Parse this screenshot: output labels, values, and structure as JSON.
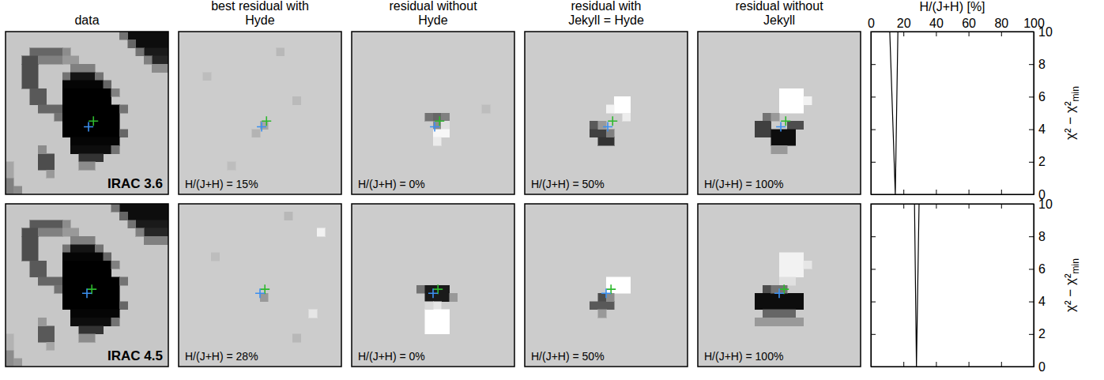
{
  "chart_data": [
    {
      "type": "image",
      "title": "data",
      "label": "IRAC 3.6",
      "size": [
        20,
        20
      ],
      "value_range": [
        0,
        1
      ],
      "background": 0.78,
      "patches": [
        [
          0,
          15,
          1,
          5,
          0.05
        ],
        [
          1,
          16,
          1,
          4,
          0.05
        ],
        [
          2,
          17,
          1,
          3,
          0.1
        ],
        [
          3,
          18,
          1,
          2,
          0.15
        ],
        [
          0,
          14,
          1,
          1,
          0.45
        ],
        [
          1,
          15,
          1,
          1,
          0.4
        ],
        [
          2,
          16,
          1,
          1,
          0.45
        ],
        [
          3,
          17,
          1,
          1,
          0.5
        ],
        [
          4,
          18,
          1,
          2,
          0.55
        ],
        [
          2,
          3,
          1,
          4,
          0.4
        ],
        [
          2,
          7,
          1,
          1,
          0.55
        ],
        [
          3,
          2,
          1,
          2,
          0.3
        ],
        [
          3,
          4,
          1,
          3,
          0.5
        ],
        [
          4,
          2,
          3,
          2,
          0.3
        ],
        [
          7,
          3,
          2,
          2,
          0.35
        ],
        [
          9,
          4,
          1,
          3,
          0.4
        ],
        [
          10,
          6,
          1,
          1,
          0.45
        ],
        [
          3,
          7,
          1,
          2,
          0.6
        ],
        [
          4,
          8,
          1,
          3,
          0.5
        ],
        [
          5,
          7,
          1,
          1,
          0.45
        ],
        [
          5,
          8,
          1,
          3,
          0.08
        ],
        [
          5,
          11,
          1,
          1,
          0.45
        ],
        [
          6,
          7,
          1,
          5,
          0.02
        ],
        [
          6,
          12,
          1,
          1,
          0.4
        ],
        [
          7,
          7,
          2,
          6,
          0
        ],
        [
          7,
          13,
          1,
          1,
          0.5
        ],
        [
          9,
          7,
          4,
          7,
          0
        ],
        [
          9,
          14,
          1,
          1,
          0.45
        ],
        [
          12,
          14,
          1,
          1,
          0.4
        ],
        [
          13,
          8,
          1,
          6,
          0.02
        ],
        [
          14,
          8,
          1,
          5,
          0.05
        ],
        [
          14,
          13,
          1,
          1,
          0.45
        ],
        [
          15,
          9,
          1,
          3,
          0.2
        ],
        [
          16,
          9,
          1,
          2,
          0.55
        ],
        [
          15,
          4,
          2,
          2,
          0.3
        ],
        [
          14,
          4,
          1,
          1,
          0.55
        ],
        [
          17,
          5,
          1,
          1,
          0.6
        ],
        [
          18,
          0,
          2,
          1,
          0.5
        ],
        [
          19,
          1,
          1,
          1,
          0.55
        ],
        [
          16,
          0,
          2,
          1,
          0.65
        ]
      ],
      "markers": [
        {
          "x": 10.8,
          "y": 11.0,
          "color": "#2db82d"
        },
        {
          "x": 10.2,
          "y": 11.7,
          "color": "#3b8ff0"
        }
      ]
    },
    {
      "type": "image",
      "title": "best residual with Hyde",
      "annotation": "H/(J+H) = 15%",
      "size": [
        20,
        20
      ],
      "value_range": [
        0,
        1
      ],
      "background": 0.8,
      "patches": [
        [
          11,
          10,
          1,
          1,
          0.65
        ],
        [
          12,
          9,
          1,
          1,
          0.7
        ],
        [
          2,
          12,
          1,
          1,
          0.72
        ],
        [
          8,
          14,
          1,
          1,
          0.73
        ],
        [
          16,
          6,
          1,
          1,
          0.74
        ],
        [
          5,
          3,
          1,
          1,
          0.74
        ]
      ],
      "markers": [
        {
          "x": 10.8,
          "y": 11.0,
          "color": "#2db82d"
        },
        {
          "x": 10.2,
          "y": 11.7,
          "color": "#3b8ff0"
        }
      ]
    },
    {
      "type": "image",
      "title": "residual without Hyde",
      "annotation": "H/(J+H) = 0%",
      "size": [
        20,
        20
      ],
      "value_range": [
        0,
        1
      ],
      "background": 0.8,
      "patches": [
        [
          10,
          9,
          1,
          1,
          0.45
        ],
        [
          10,
          10,
          1,
          1,
          0.4
        ],
        [
          10,
          11,
          1,
          1,
          0.5
        ],
        [
          11,
          10,
          1,
          1,
          0.55
        ],
        [
          11,
          11,
          1,
          1,
          0.88
        ],
        [
          12,
          10,
          1,
          2,
          0.97
        ],
        [
          13,
          10,
          1,
          1,
          0.92
        ],
        [
          9,
          16,
          1,
          1,
          0.74
        ]
      ],
      "markers": [
        {
          "x": 10.8,
          "y": 11.0,
          "color": "#2db82d"
        },
        {
          "x": 10.2,
          "y": 11.7,
          "color": "#3b8ff0"
        }
      ]
    },
    {
      "type": "image",
      "title": "residual with Jekyll = Hyde",
      "annotation": "H/(J+H) = 50%",
      "size": [
        20,
        20
      ],
      "value_range": [
        0,
        1
      ],
      "background": 0.8,
      "patches": [
        [
          8,
          11,
          2,
          2,
          1
        ],
        [
          9,
          10,
          1,
          1,
          0.95
        ],
        [
          10,
          12,
          1,
          1,
          0.93
        ],
        [
          11,
          8,
          1,
          1,
          0.35
        ],
        [
          12,
          8,
          1,
          2,
          0.25
        ],
        [
          13,
          9,
          1,
          2,
          0.2
        ],
        [
          12,
          10,
          1,
          1,
          0.5
        ],
        [
          11,
          9,
          1,
          1,
          0.6
        ]
      ],
      "markers": [
        {
          "x": 10.8,
          "y": 11.0,
          "color": "#2db82d"
        },
        {
          "x": 10.2,
          "y": 11.7,
          "color": "#3b8ff0"
        }
      ]
    },
    {
      "type": "image",
      "title": "residual without Jekyll",
      "annotation": "H/(J+H) = 100%",
      "size": [
        20,
        20
      ],
      "value_range": [
        0,
        1
      ],
      "background": 0.8,
      "patches": [
        [
          7,
          10,
          3,
          3,
          1
        ],
        [
          8,
          13,
          1,
          1,
          0.95
        ],
        [
          10,
          8,
          1,
          1,
          0.45
        ],
        [
          11,
          7,
          2,
          2,
          0.25
        ],
        [
          11,
          11,
          1,
          2,
          0.3
        ],
        [
          12,
          9,
          2,
          3,
          0.05
        ],
        [
          10,
          9,
          1,
          1,
          0.6
        ],
        [
          14,
          9,
          1,
          2,
          0.6
        ]
      ],
      "markers": [
        {
          "x": 10.8,
          "y": 11.0,
          "color": "#2db82d"
        },
        {
          "x": 10.2,
          "y": 11.7,
          "color": "#3b8ff0"
        }
      ]
    },
    {
      "type": "line",
      "xlabel": "H/(J+H) [%]",
      "ylabel": "χ² − χ²",
      "ylabel_subscript": "min",
      "x": [
        11.6,
        15,
        16.6
      ],
      "values": [
        10,
        0,
        10
      ],
      "color": "#000000",
      "xlim": [
        0,
        100
      ],
      "xticks": [
        0,
        20,
        40,
        60,
        80,
        100
      ],
      "ylim": [
        0,
        10
      ],
      "yticks": [
        0,
        2,
        4,
        6,
        8,
        10
      ],
      "tick_labels": true
    },
    {
      "type": "image",
      "label": "IRAC 4.5",
      "size": [
        20,
        20
      ],
      "value_range": [
        0,
        1
      ],
      "background": 0.78,
      "patches": [
        [
          0,
          14,
          1,
          6,
          0.05
        ],
        [
          1,
          15,
          1,
          5,
          0.05
        ],
        [
          2,
          16,
          1,
          4,
          0.1
        ],
        [
          3,
          17,
          1,
          3,
          0.15
        ],
        [
          0,
          13,
          1,
          1,
          0.45
        ],
        [
          1,
          14,
          1,
          1,
          0.4
        ],
        [
          2,
          15,
          1,
          1,
          0.45
        ],
        [
          3,
          16,
          1,
          1,
          0.5
        ],
        [
          4,
          17,
          1,
          3,
          0.5
        ],
        [
          2,
          3,
          1,
          4,
          0.35
        ],
        [
          2,
          7,
          1,
          1,
          0.55
        ],
        [
          3,
          2,
          1,
          2,
          0.3
        ],
        [
          3,
          4,
          1,
          3,
          0.5
        ],
        [
          4,
          2,
          3,
          2,
          0.3
        ],
        [
          7,
          3,
          2,
          2,
          0.35
        ],
        [
          9,
          4,
          1,
          3,
          0.4
        ],
        [
          10,
          6,
          1,
          1,
          0.45
        ],
        [
          3,
          7,
          1,
          2,
          0.6
        ],
        [
          4,
          8,
          1,
          3,
          0.5
        ],
        [
          5,
          7,
          1,
          1,
          0.45
        ],
        [
          5,
          8,
          1,
          3,
          0.08
        ],
        [
          5,
          11,
          1,
          1,
          0.45
        ],
        [
          6,
          7,
          1,
          5,
          0.02
        ],
        [
          6,
          12,
          1,
          1,
          0.4
        ],
        [
          7,
          7,
          2,
          6,
          0
        ],
        [
          7,
          13,
          1,
          1,
          0.5
        ],
        [
          9,
          7,
          4,
          7,
          0
        ],
        [
          9,
          14,
          1,
          1,
          0.45
        ],
        [
          12,
          14,
          1,
          1,
          0.4
        ],
        [
          13,
          8,
          1,
          6,
          0.02
        ],
        [
          14,
          8,
          1,
          5,
          0.05
        ],
        [
          14,
          13,
          1,
          1,
          0.45
        ],
        [
          15,
          9,
          1,
          3,
          0.2
        ],
        [
          16,
          9,
          1,
          2,
          0.55
        ],
        [
          15,
          4,
          2,
          2,
          0.35
        ],
        [
          14,
          4,
          1,
          1,
          0.6
        ],
        [
          17,
          5,
          1,
          1,
          0.65
        ],
        [
          18,
          0,
          2,
          1,
          0.55
        ],
        [
          19,
          1,
          1,
          1,
          0.6
        ],
        [
          16,
          0,
          2,
          1,
          0.7
        ]
      ],
      "markers": [
        {
          "x": 10.6,
          "y": 10.5,
          "color": "#2db82d"
        },
        {
          "x": 10.0,
          "y": 11.0,
          "color": "#3b8ff0"
        }
      ]
    },
    {
      "type": "image",
      "annotation": "H/(J+H) = 28%",
      "size": [
        20,
        20
      ],
      "value_range": [
        0,
        1
      ],
      "background": 0.8,
      "patches": [
        [
          11,
          10,
          1,
          1,
          0.6
        ],
        [
          3,
          17,
          1,
          1,
          0.95
        ],
        [
          1,
          13,
          1,
          1,
          0.72
        ],
        [
          16,
          14,
          1,
          1,
          0.72
        ],
        [
          6,
          4,
          1,
          1,
          0.74
        ],
        [
          13,
          16,
          1,
          1,
          0.9
        ]
      ],
      "markers": [
        {
          "x": 10.6,
          "y": 10.5,
          "color": "#2db82d"
        },
        {
          "x": 10.0,
          "y": 11.0,
          "color": "#3b8ff0"
        }
      ]
    },
    {
      "type": "image",
      "annotation": "H/(J+H) = 0%",
      "size": [
        20,
        20
      ],
      "value_range": [
        0,
        1
      ],
      "background": 0.8,
      "patches": [
        [
          10,
          8,
          1,
          1,
          0.45
        ],
        [
          10,
          9,
          2,
          3,
          0.1
        ],
        [
          11,
          12,
          1,
          1,
          0.6
        ],
        [
          12,
          10,
          1,
          1,
          0.9
        ],
        [
          13,
          9,
          3,
          3,
          1
        ],
        [
          12,
          9,
          1,
          1,
          0.85
        ]
      ],
      "markers": [
        {
          "x": 10.6,
          "y": 10.5,
          "color": "#2db82d"
        },
        {
          "x": 10.0,
          "y": 11.0,
          "color": "#3b8ff0"
        }
      ]
    },
    {
      "type": "image",
      "annotation": "H/(J+H) = 50%",
      "size": [
        20,
        20
      ],
      "value_range": [
        0,
        1
      ],
      "background": 0.8,
      "patches": [
        [
          9,
          10,
          2,
          3,
          1
        ],
        [
          11,
          9,
          1,
          1,
          0.3
        ],
        [
          12,
          8,
          1,
          3,
          0.35
        ],
        [
          13,
          9,
          1,
          1,
          0.6
        ],
        [
          11,
          10,
          1,
          1,
          0.55
        ]
      ],
      "markers": [
        {
          "x": 10.6,
          "y": 10.5,
          "color": "#2db82d"
        },
        {
          "x": 10.0,
          "y": 11.0,
          "color": "#3b8ff0"
        }
      ]
    },
    {
      "type": "image",
      "annotation": "H/(J+H) = 100%",
      "size": [
        20,
        20
      ],
      "value_range": [
        0,
        1
      ],
      "background": 0.8,
      "patches": [
        [
          6,
          10,
          3,
          3,
          0.95
        ],
        [
          7,
          13,
          1,
          1,
          0.9
        ],
        [
          9,
          10,
          1,
          2,
          0.88
        ],
        [
          10,
          8,
          1,
          1,
          0.3
        ],
        [
          11,
          7,
          2,
          6,
          0.05
        ],
        [
          13,
          8,
          1,
          4,
          0.4
        ],
        [
          14,
          7,
          1,
          6,
          0.6
        ],
        [
          10,
          9,
          1,
          2,
          0.45
        ]
      ],
      "markers": [
        {
          "x": 10.6,
          "y": 10.5,
          "color": "#2db82d"
        },
        {
          "x": 10.0,
          "y": 11.0,
          "color": "#3b8ff0"
        }
      ]
    },
    {
      "type": "line",
      "ylabel": "χ² − χ²",
      "ylabel_subscript": "min",
      "x": [
        26.8,
        28,
        29.6
      ],
      "values": [
        10,
        0,
        10
      ],
      "color": "#000000",
      "xlim": [
        0,
        100
      ],
      "xticks": [
        0,
        20,
        40,
        60,
        80,
        100
      ],
      "ylim": [
        0,
        10
      ],
      "yticks": [
        0,
        2,
        4,
        6,
        8,
        10
      ],
      "tick_labels": "y"
    }
  ]
}
